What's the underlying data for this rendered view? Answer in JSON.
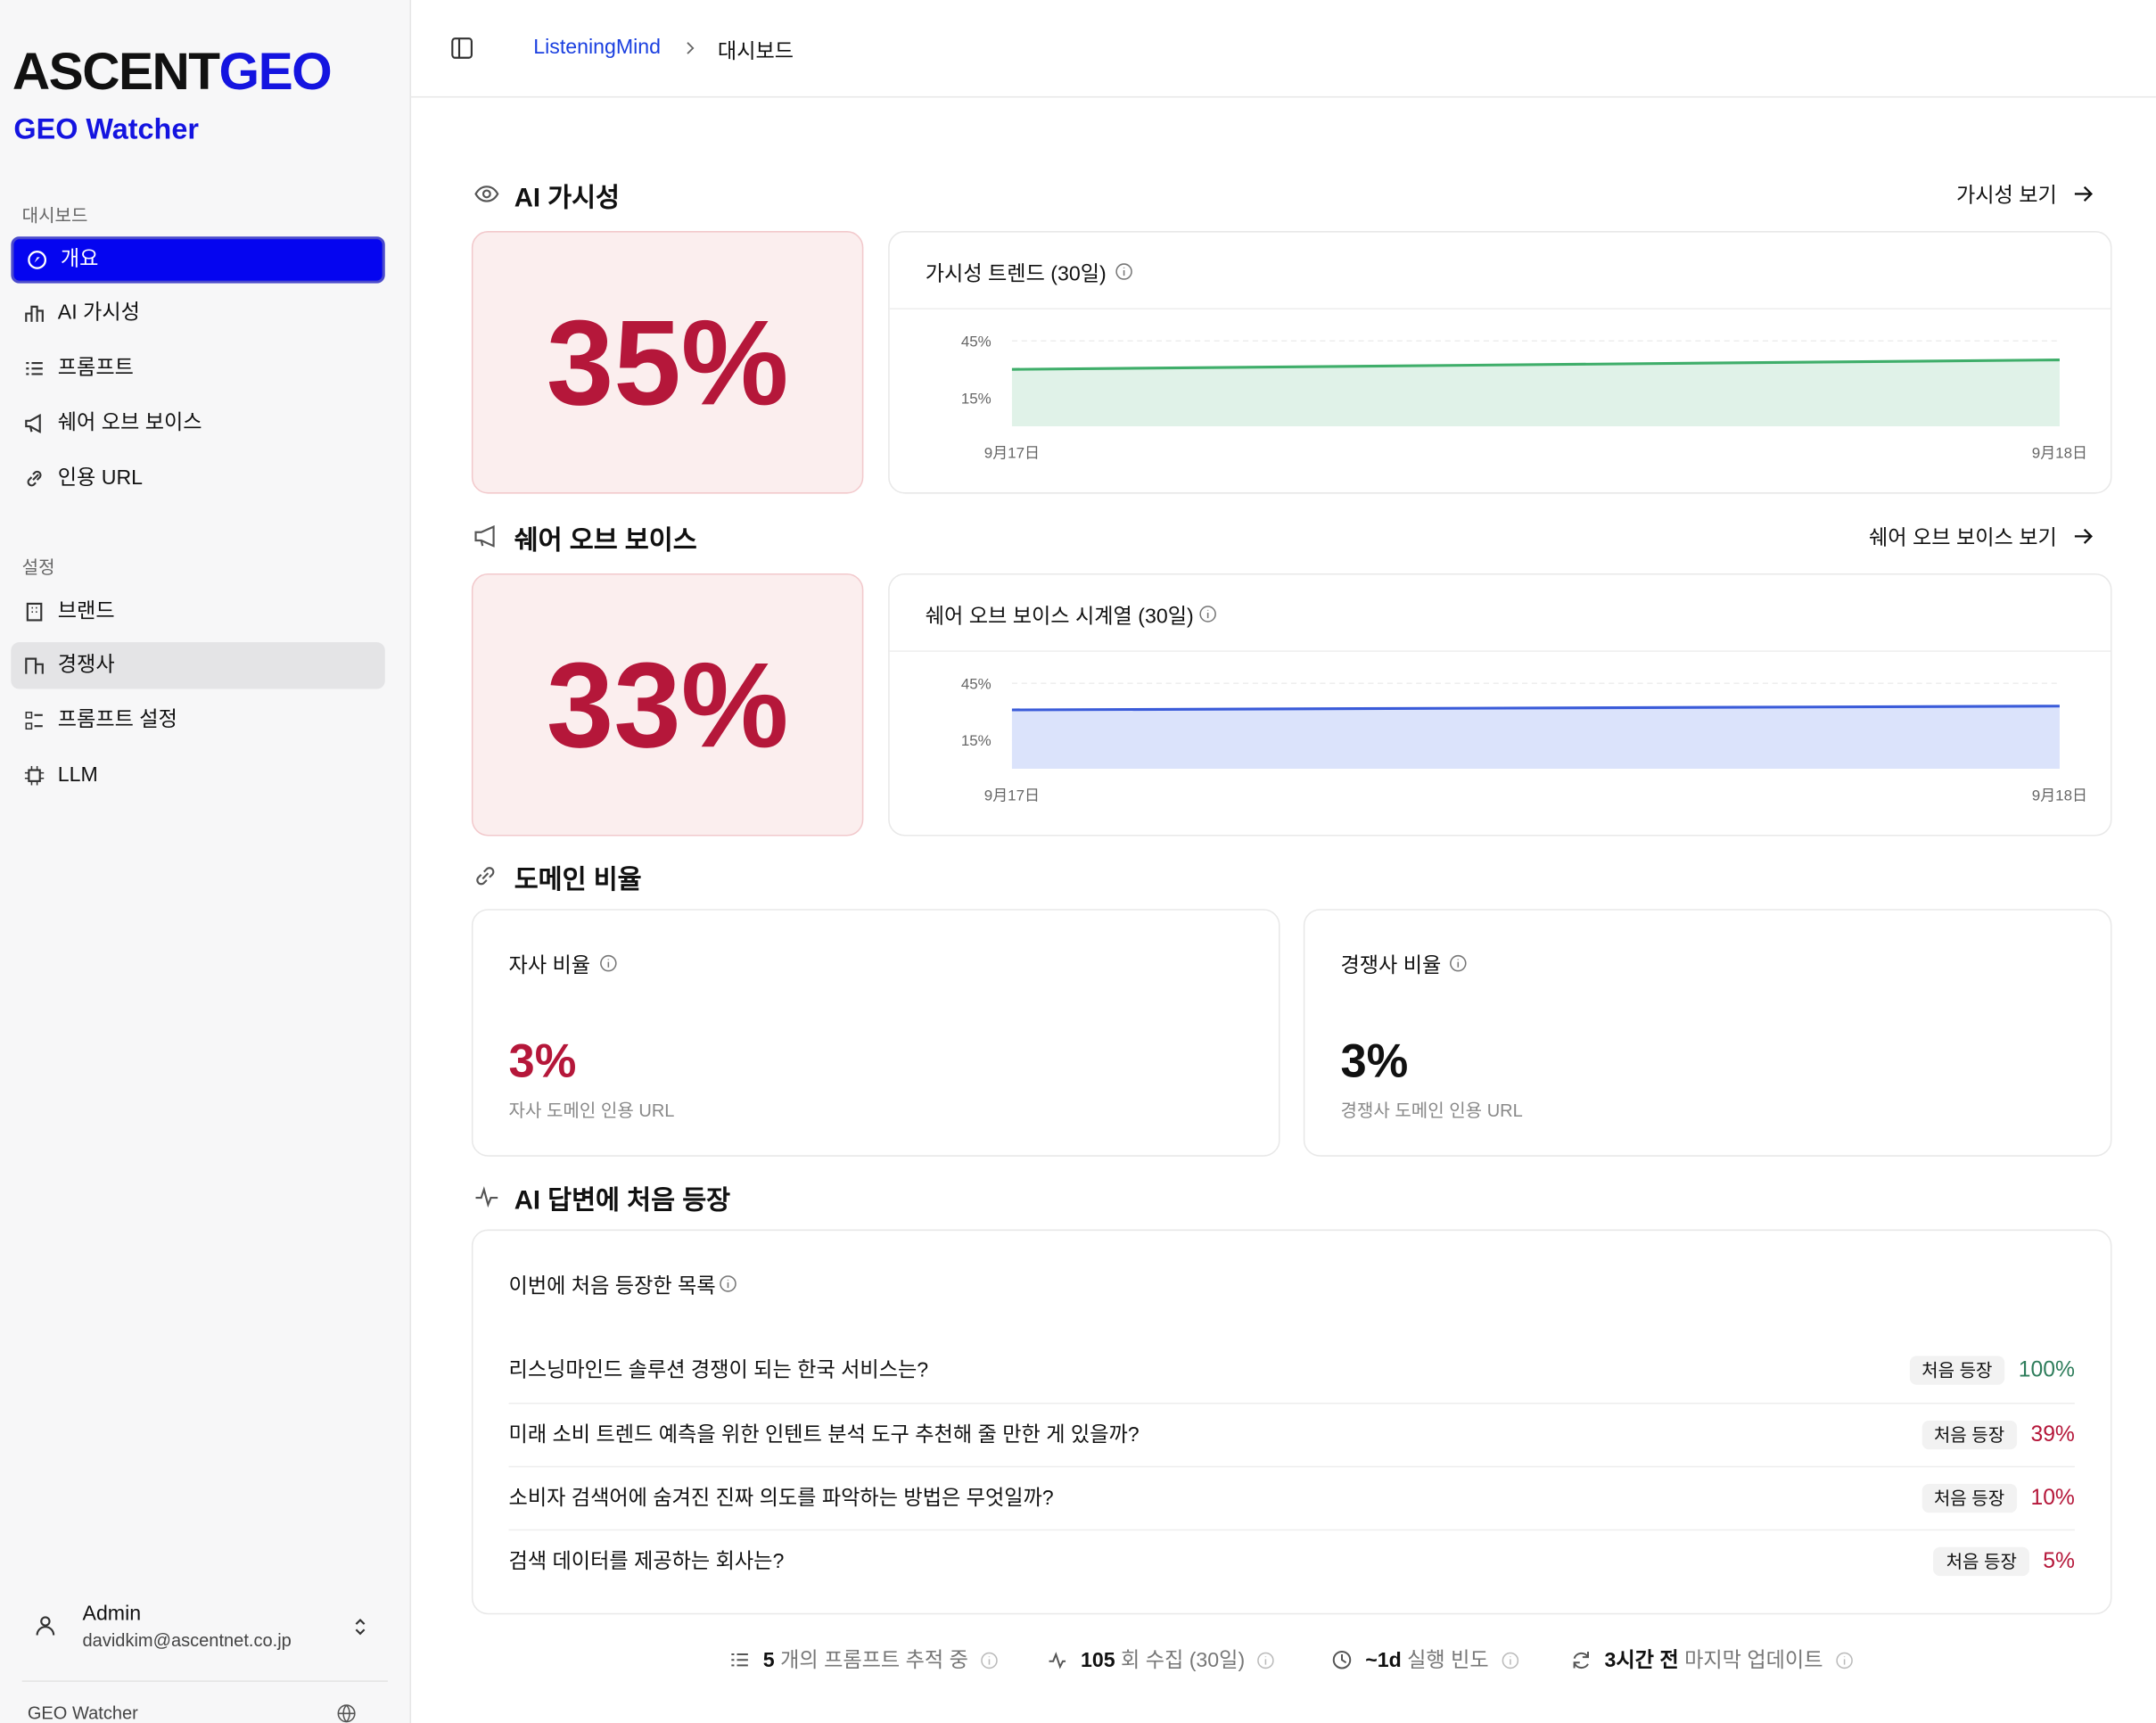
{
  "sidebar": {
    "logo": {
      "part1": "ASCENT",
      "part2": "GEO"
    },
    "app_name": "GEO Watcher",
    "sections": [
      {
        "label": "대시보드",
        "items": [
          "개요",
          "AI 가시성",
          "프롬프트",
          "쉐어 오브 보이스",
          "인용 URL"
        ]
      },
      {
        "label": "설정",
        "items": [
          "브랜드",
          "경쟁사",
          "프롬프트 설정",
          "LLM"
        ]
      }
    ],
    "user": {
      "name": "Admin",
      "email": "davidkim@ascentnet.co.jp"
    },
    "footer": "GEO Watcher"
  },
  "header": {
    "breadcrumb": [
      "ListeningMind",
      "대시보드"
    ]
  },
  "visibility": {
    "title": "AI 가시성",
    "link": "가시성 보기",
    "score": "35%",
    "chart_data": {
      "type": "line",
      "title": "가시성 트렌드 (30일)",
      "categories": [
        "9月17日",
        "9月18日"
      ],
      "values": [
        30,
        35
      ],
      "color": "#3fae6a",
      "fill": "#e0f2e8",
      "ylim": [
        0,
        50
      ],
      "yticks": [
        {
          "value": 15,
          "label": "15%"
        },
        {
          "value": 45,
          "label": "45%"
        }
      ],
      "grid": true
    }
  },
  "share_of_voice": {
    "title": "쉐어 오브 보이스",
    "link": "쉐어 오브 보이스 보기",
    "score": "33%",
    "chart_data": {
      "type": "line",
      "title": "쉐어 오브 보이스 시계열 (30일)",
      "categories": [
        "9月17日",
        "9月18日"
      ],
      "values": [
        31,
        33
      ],
      "color": "#3a5bd9",
      "fill": "#dbe3fb",
      "ylim": [
        0,
        50
      ],
      "yticks": [
        {
          "value": 15,
          "label": "15%"
        },
        {
          "value": 45,
          "label": "45%"
        }
      ],
      "grid": true
    }
  },
  "domain_ratio": {
    "title": "도메인 비율",
    "own": {
      "title": "자사 비율",
      "value": "3%",
      "caption": "자사 도메인 인용 URL"
    },
    "competitor": {
      "title": "경쟁사 비율",
      "value": "3%",
      "caption": "경쟁사 도메인 인용 URL"
    }
  },
  "first_appearance": {
    "title": "AI 답변에 처음 등장",
    "subtitle": "이번에 처음 등장한 목록",
    "rows": [
      {
        "question": "리스닝마인드 솔루션 경쟁이 되는 한국 서비스는?",
        "badge": "처음 등장",
        "value": "100%",
        "color": "#2e7d5b"
      },
      {
        "question": "미래 소비 트렌드 예측을 위한 인텐트 분석 도구 추천해 줄 만한 게 있을까?",
        "badge": "처음 등장",
        "value": "39%",
        "color": "#b5173a"
      },
      {
        "question": "소비자 검색어에 숨겨진 진짜 의도를 파악하는 방법은 무엇일까?",
        "badge": "처음 등장",
        "value": "10%",
        "color": "#b5173a"
      },
      {
        "question": "검색 데이터를 제공하는 회사는?",
        "badge": "처음 등장",
        "value": "5%",
        "color": "#b5173a"
      }
    ]
  },
  "stats": [
    {
      "value": "5",
      "label": "개의 프롬프트 추적 중"
    },
    {
      "value": "105",
      "label": "회 수집 (30일)"
    },
    {
      "value": "~1d",
      "label": "실행 빈도"
    },
    {
      "value": "3시간 전",
      "label": "마지막 업데이트"
    }
  ]
}
